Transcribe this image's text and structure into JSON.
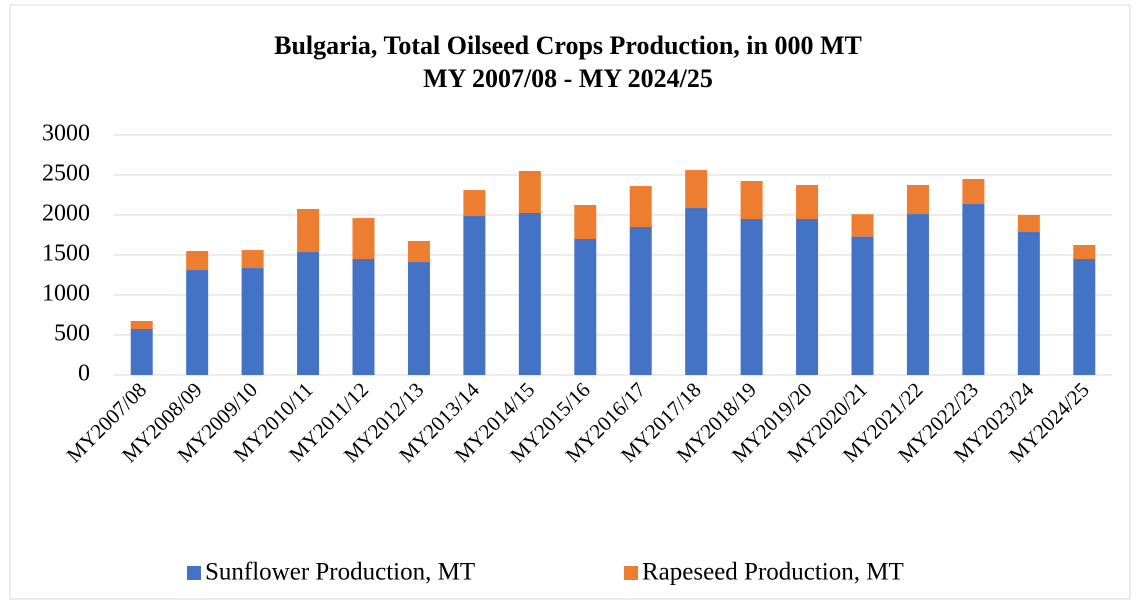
{
  "chart_data": {
    "type": "stacked_bar",
    "title": [
      "Bulgaria, Total Oilseed Crops Production, in 000 MT",
      "MY 2007/08 - MY 2024/25"
    ],
    "categories": [
      "MY2007/08",
      "MY2008/09",
      "MY2009/10",
      "MY2010/11",
      "MY2011/12",
      "MY2012/13",
      "MY2013/14",
      "MY2014/15",
      "MY2015/16",
      "MY2016/17",
      "MY2017/18",
      "MY2018/19",
      "MY2019/20",
      "MY2020/21",
      "MY2021/22",
      "MY2022/23",
      "MY2023/24",
      "MY2024/25"
    ],
    "series": [
      {
        "name": "Sunflower Production, MT",
        "color": "#4472c4",
        "values": [
          575,
          1312,
          1337,
          1537,
          1450,
          1412,
          1987,
          2025,
          1700,
          1850,
          2087,
          1950,
          1950,
          1730,
          2012,
          2137,
          1787,
          1450
        ]
      },
      {
        "name": "Rapeseed Production, MT",
        "color": "#ed7d31",
        "values": [
          100,
          238,
          225,
          538,
          512,
          263,
          325,
          525,
          425,
          512,
          475,
          475,
          425,
          280,
          363,
          313,
          213,
          175
        ]
      }
    ],
    "ylim": [
      0,
      3000
    ],
    "yticks": [
      0,
      500,
      1000,
      1500,
      2000,
      2500,
      3000
    ],
    "grid": true,
    "legend": "bottom"
  }
}
